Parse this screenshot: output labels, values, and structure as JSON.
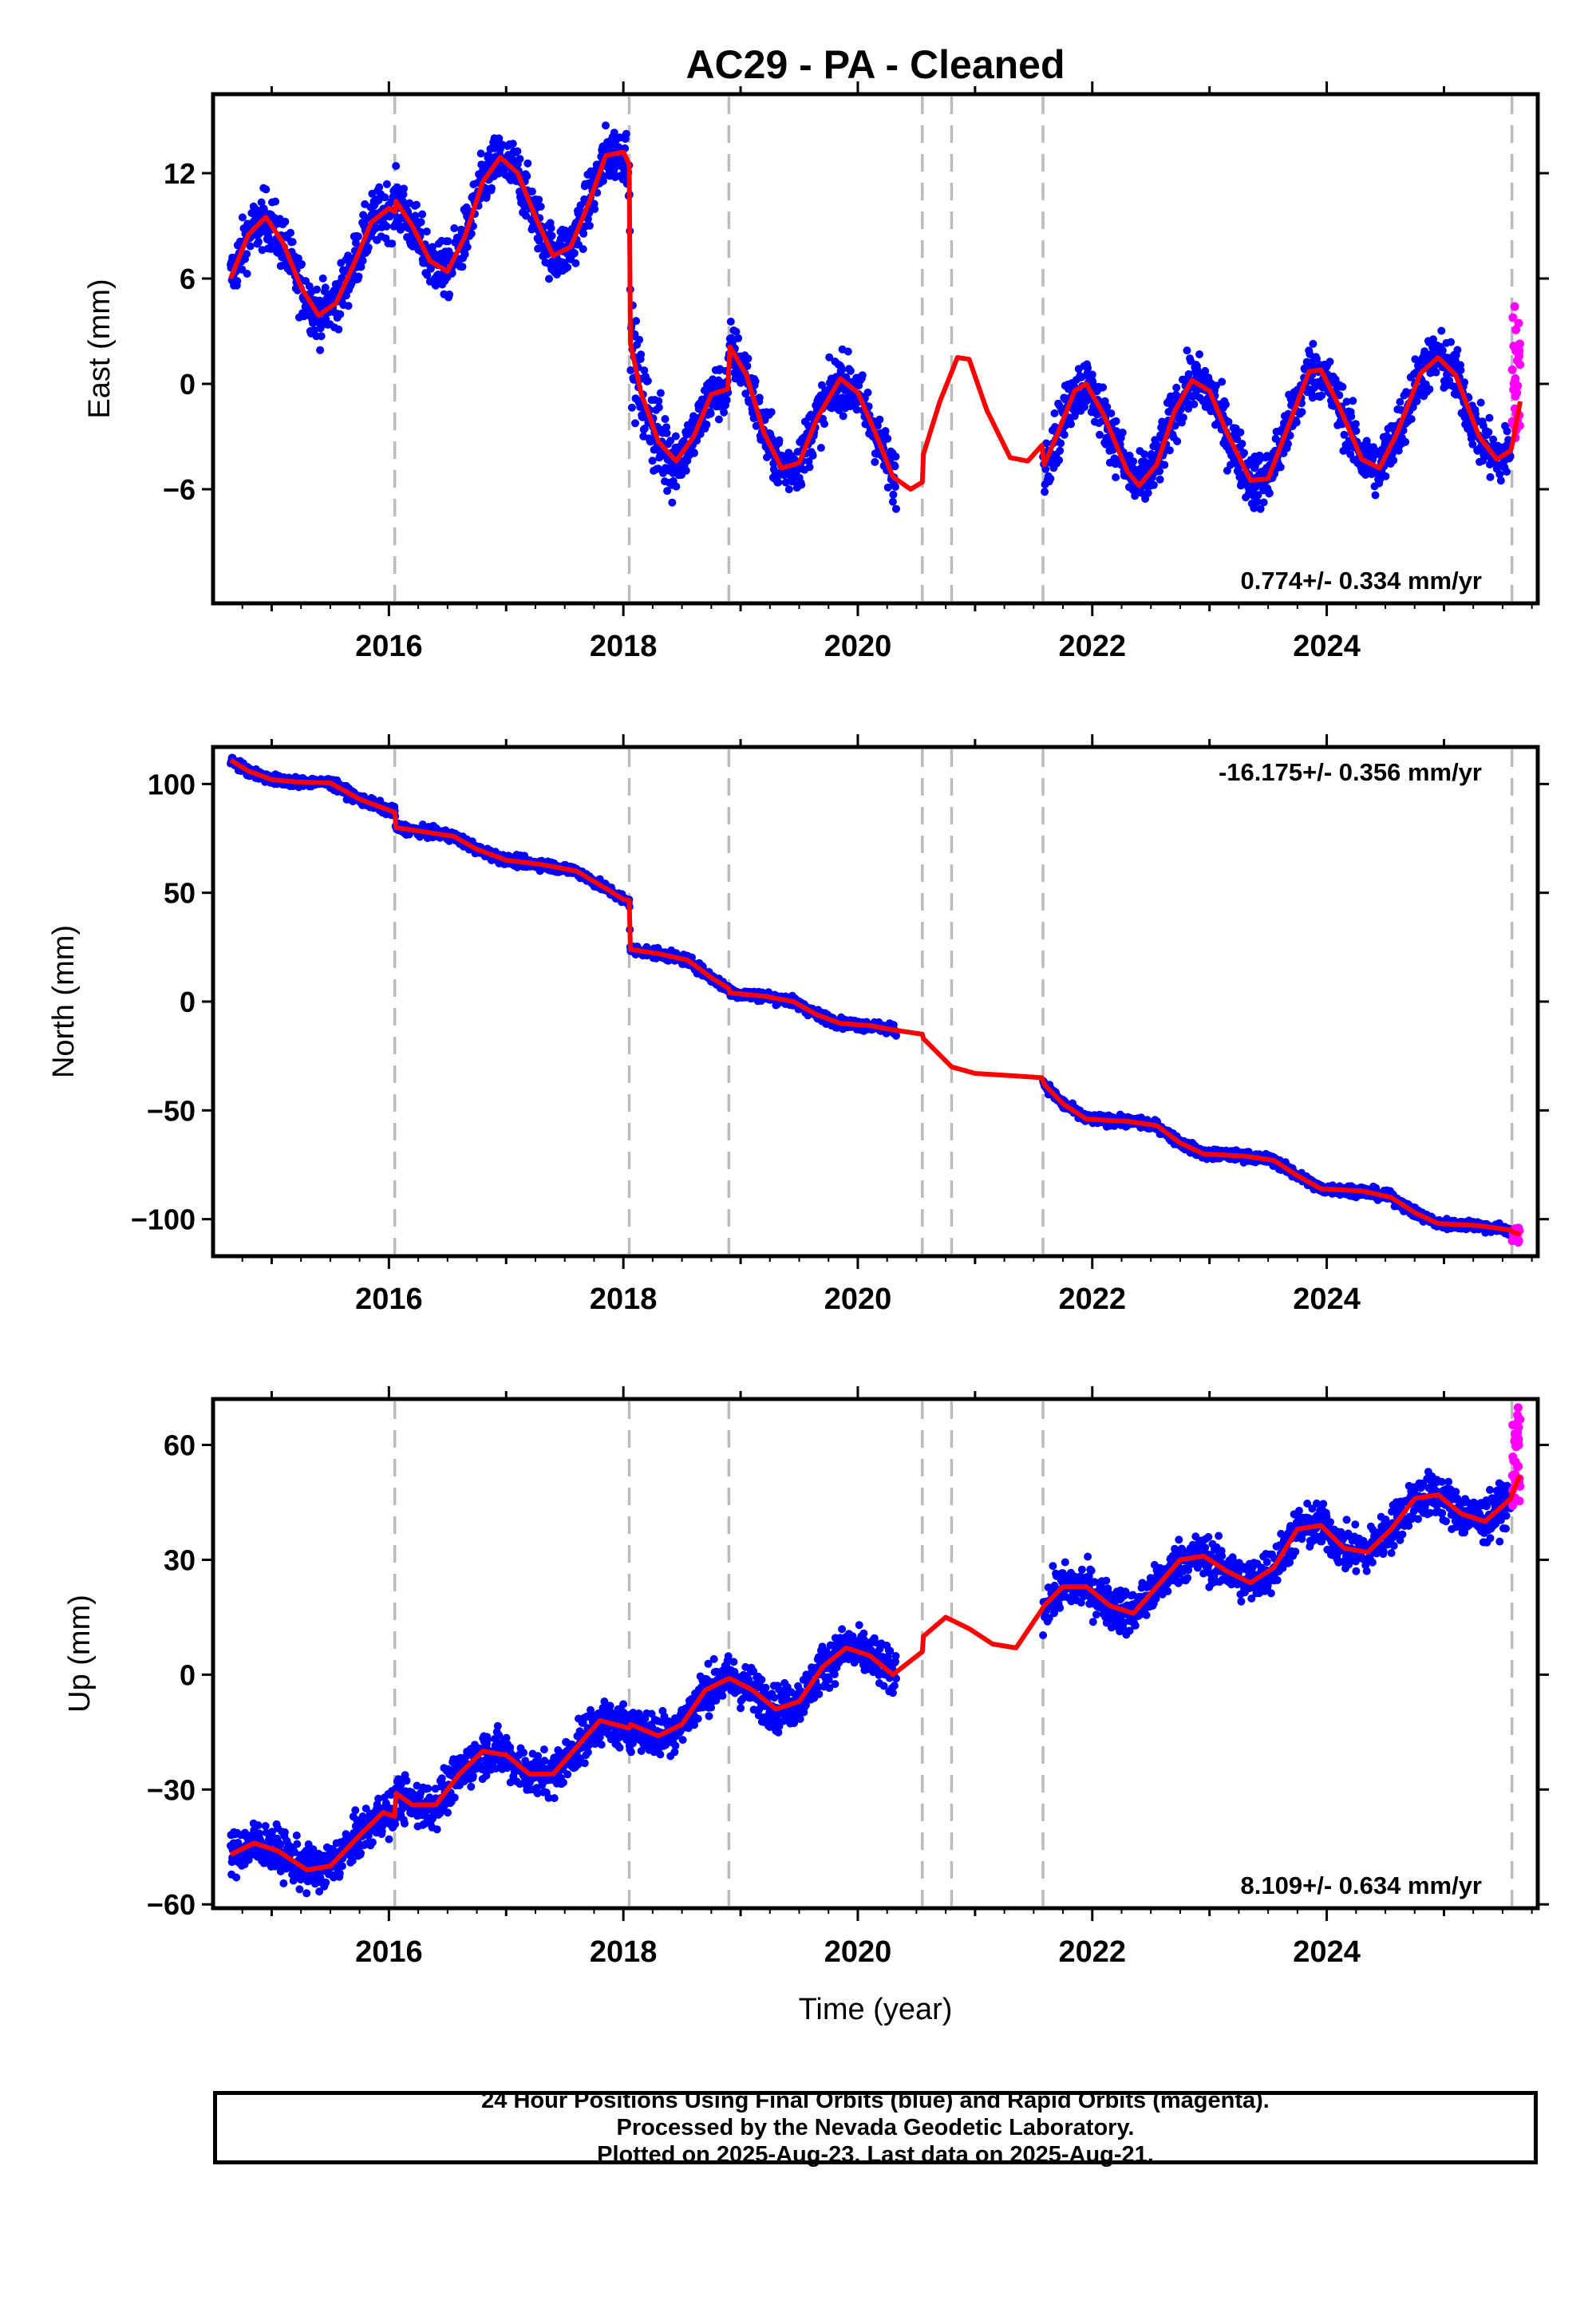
{
  "title": "AC29  - PA - Cleaned",
  "footer": {
    "line1": "24 Hour Positions Using Final Orbits (blue) and Rapid Orbits (magenta).",
    "line2": "Processed by the Nevada Geodetic Laboratory.",
    "line3": "Plotted on 2025-Aug-23. Last data on 2025-Aug-21."
  },
  "colors": {
    "final": "#0000ff",
    "rapid": "#ff00ff",
    "model": "#ff0000",
    "breaks": "#bbbbbb"
  },
  "chart_data": [
    {
      "type": "scatter",
      "name": "east",
      "ylabel": "East (mm)",
      "xlabel": "",
      "xlim": [
        2014.5,
        2025.8
      ],
      "ylim": [
        -12.5,
        16.5
      ],
      "yticks": [
        12,
        6,
        0,
        -6
      ],
      "xticks": [
        2016,
        2018,
        2020,
        2022,
        2024
      ],
      "rate_label": "0.774+/- 0.334 mm/yr",
      "rate_position": "bottom-right",
      "breaks": [
        2016.05,
        2018.05,
        2018.9,
        2020.55,
        2020.8,
        2021.58,
        2025.58
      ],
      "gaps": [
        [
          2020.33,
          2021.58
        ]
      ],
      "model_series": [
        [
          2014.65,
          6.0
        ],
        [
          2014.8,
          8.5
        ],
        [
          2014.95,
          9.5
        ],
        [
          2015.1,
          8.0
        ],
        [
          2015.25,
          5.5
        ],
        [
          2015.4,
          3.9
        ],
        [
          2015.55,
          4.6
        ],
        [
          2015.7,
          6.8
        ],
        [
          2015.85,
          9.2
        ],
        [
          2016.0,
          10.0
        ],
        [
          2016.05,
          9.8
        ],
        [
          2016.06,
          10.4
        ],
        [
          2016.2,
          9.0
        ],
        [
          2016.35,
          7.0
        ],
        [
          2016.5,
          6.4
        ],
        [
          2016.65,
          8.4
        ],
        [
          2016.8,
          11.5
        ],
        [
          2016.95,
          12.9
        ],
        [
          2017.1,
          12.0
        ],
        [
          2017.25,
          9.5
        ],
        [
          2017.4,
          7.3
        ],
        [
          2017.55,
          7.8
        ],
        [
          2017.7,
          10.2
        ],
        [
          2017.85,
          13.0
        ],
        [
          2018.0,
          13.2
        ],
        [
          2018.05,
          12.5
        ],
        [
          2018.06,
          2.3
        ],
        [
          2018.15,
          -0.5
        ],
        [
          2018.3,
          -3.3
        ],
        [
          2018.45,
          -4.4
        ],
        [
          2018.6,
          -3.0
        ],
        [
          2018.75,
          -0.6
        ],
        [
          2018.89,
          -0.3
        ],
        [
          2018.91,
          2.1
        ],
        [
          2019.05,
          0.5
        ],
        [
          2019.2,
          -2.8
        ],
        [
          2019.35,
          -4.8
        ],
        [
          2019.5,
          -4.5
        ],
        [
          2019.65,
          -2.0
        ],
        [
          2019.85,
          0.3
        ],
        [
          2020.0,
          -0.5
        ],
        [
          2020.15,
          -2.8
        ],
        [
          2020.3,
          -5.3
        ],
        [
          2020.45,
          -6.0
        ],
        [
          2020.55,
          -5.6
        ],
        [
          2020.56,
          -4.0
        ],
        [
          2020.7,
          -1.0
        ],
        [
          2020.85,
          1.5
        ],
        [
          2020.95,
          1.4
        ],
        [
          2021.1,
          -1.5
        ],
        [
          2021.3,
          -4.2
        ],
        [
          2021.45,
          -4.4
        ],
        [
          2021.57,
          -3.5
        ],
        [
          2021.59,
          -4.6
        ],
        [
          2021.7,
          -2.9
        ],
        [
          2021.85,
          -0.4
        ],
        [
          2021.95,
          0.0
        ],
        [
          2022.1,
          -1.8
        ],
        [
          2022.3,
          -5.0
        ],
        [
          2022.4,
          -5.8
        ],
        [
          2022.55,
          -4.6
        ],
        [
          2022.7,
          -1.6
        ],
        [
          2022.85,
          0.2
        ],
        [
          2023.0,
          -0.4
        ],
        [
          2023.15,
          -2.8
        ],
        [
          2023.35,
          -5.5
        ],
        [
          2023.5,
          -5.4
        ],
        [
          2023.65,
          -2.8
        ],
        [
          2023.85,
          0.7
        ],
        [
          2023.95,
          0.8
        ],
        [
          2024.1,
          -1.2
        ],
        [
          2024.3,
          -4.3
        ],
        [
          2024.45,
          -4.8
        ],
        [
          2024.6,
          -2.8
        ],
        [
          2024.8,
          0.6
        ],
        [
          2024.95,
          1.5
        ],
        [
          2025.1,
          0.5
        ],
        [
          2025.3,
          -3.0
        ],
        [
          2025.45,
          -4.3
        ],
        [
          2025.57,
          -3.8
        ],
        [
          2025.59,
          -3.2
        ],
        [
          2025.65,
          -1.0
        ]
      ],
      "final_series": {
        "intervals": [
          [
            2014.65,
            2020.33
          ],
          [
            2021.58,
            2025.57
          ]
        ],
        "spread": 1.5,
        "spread_extra": [
          [
            2018.05,
            2018.45,
            1.0
          ]
        ]
      },
      "rapid_series": {
        "interval": [
          2025.58,
          2025.65
        ],
        "min": -3.5,
        "max": 4.5
      }
    },
    {
      "type": "scatter",
      "name": "north",
      "ylabel": "North (mm)",
      "xlabel": "",
      "xlim": [
        2014.5,
        2025.8
      ],
      "ylim": [
        -117,
        117
      ],
      "yticks": [
        100,
        50,
        0,
        -50,
        -100
      ],
      "xticks": [
        2016,
        2018,
        2020,
        2022,
        2024
      ],
      "rate_label": "-16.175+/- 0.356 mm/yr",
      "rate_position": "top-right",
      "breaks": [
        2016.05,
        2018.05,
        2018.9,
        2020.55,
        2020.8,
        2021.58,
        2025.58
      ],
      "gaps": [
        [
          2020.33,
          2021.58
        ]
      ],
      "model_series": [
        [
          2014.65,
          111
        ],
        [
          2014.8,
          106
        ],
        [
          2015.0,
          102
        ],
        [
          2015.2,
          101
        ],
        [
          2015.5,
          100.5
        ],
        [
          2015.75,
          93
        ],
        [
          2016.0,
          88
        ],
        [
          2016.05,
          87
        ],
        [
          2016.06,
          80
        ],
        [
          2016.3,
          78
        ],
        [
          2016.55,
          76
        ],
        [
          2016.75,
          70
        ],
        [
          2017.0,
          65
        ],
        [
          2017.3,
          63
        ],
        [
          2017.6,
          60
        ],
        [
          2017.85,
          52
        ],
        [
          2018.0,
          47
        ],
        [
          2018.05,
          46.5
        ],
        [
          2018.06,
          24
        ],
        [
          2018.3,
          22
        ],
        [
          2018.55,
          19
        ],
        [
          2018.75,
          11
        ],
        [
          2018.9,
          6
        ],
        [
          2018.91,
          4
        ],
        [
          2019.2,
          2.5
        ],
        [
          2019.45,
          0
        ],
        [
          2019.65,
          -6
        ],
        [
          2019.85,
          -10
        ],
        [
          2020.1,
          -11
        ],
        [
          2020.3,
          -13
        ],
        [
          2020.55,
          -15
        ],
        [
          2020.56,
          -17
        ],
        [
          2020.8,
          -30
        ],
        [
          2021.0,
          -33
        ],
        [
          2021.3,
          -34
        ],
        [
          2021.57,
          -35
        ],
        [
          2021.59,
          -38
        ],
        [
          2021.75,
          -47
        ],
        [
          2021.95,
          -54
        ],
        [
          2022.3,
          -55
        ],
        [
          2022.55,
          -57
        ],
        [
          2022.75,
          -65
        ],
        [
          2022.95,
          -70
        ],
        [
          2023.3,
          -71
        ],
        [
          2023.55,
          -73
        ],
        [
          2023.75,
          -80
        ],
        [
          2023.95,
          -86
        ],
        [
          2024.3,
          -87
        ],
        [
          2024.55,
          -90
        ],
        [
          2024.75,
          -97
        ],
        [
          2024.95,
          -102
        ],
        [
          2025.3,
          -103
        ],
        [
          2025.57,
          -105
        ],
        [
          2025.59,
          -106
        ],
        [
          2025.65,
          -107
        ]
      ],
      "final_series": {
        "intervals": [
          [
            2014.65,
            2020.33
          ],
          [
            2021.58,
            2025.57
          ]
        ],
        "spread": 2.2,
        "spread_extra": []
      },
      "rapid_series": {
        "interval": [
          2025.58,
          2025.65
        ],
        "min": -111,
        "max": -104
      }
    },
    {
      "type": "scatter",
      "name": "up",
      "ylabel": "Up (mm)",
      "xlabel": "Time (year)",
      "xlim": [
        2014.5,
        2025.8
      ],
      "ylim": [
        -61,
        72
      ],
      "yticks": [
        60,
        30,
        0,
        -30,
        -60
      ],
      "xticks": [
        2016,
        2018,
        2020,
        2022,
        2024
      ],
      "rate_label": "8.109+/- 0.634 mm/yr",
      "rate_position": "bottom-right",
      "breaks": [
        2016.05,
        2018.05,
        2018.9,
        2020.55,
        2020.8,
        2021.58,
        2025.58
      ],
      "gaps": [
        [
          2020.33,
          2021.58
        ]
      ],
      "model_series": [
        [
          2014.65,
          -47
        ],
        [
          2014.85,
          -44
        ],
        [
          2015.05,
          -46
        ],
        [
          2015.3,
          -51
        ],
        [
          2015.5,
          -50
        ],
        [
          2015.75,
          -42
        ],
        [
          2015.95,
          -36
        ],
        [
          2016.05,
          -37
        ],
        [
          2016.06,
          -31
        ],
        [
          2016.2,
          -34
        ],
        [
          2016.4,
          -34
        ],
        [
          2016.6,
          -26
        ],
        [
          2016.8,
          -20
        ],
        [
          2017.0,
          -21
        ],
        [
          2017.2,
          -26
        ],
        [
          2017.4,
          -26
        ],
        [
          2017.6,
          -19
        ],
        [
          2017.8,
          -12
        ],
        [
          2018.05,
          -14
        ],
        [
          2018.06,
          -13
        ],
        [
          2018.3,
          -16
        ],
        [
          2018.5,
          -13
        ],
        [
          2018.7,
          -4
        ],
        [
          2018.9,
          -1
        ],
        [
          2018.91,
          -1
        ],
        [
          2019.1,
          -4
        ],
        [
          2019.3,
          -9
        ],
        [
          2019.5,
          -7
        ],
        [
          2019.7,
          2
        ],
        [
          2019.9,
          7
        ],
        [
          2020.1,
          5
        ],
        [
          2020.3,
          0
        ],
        [
          2020.55,
          6
        ],
        [
          2020.56,
          10
        ],
        [
          2020.75,
          15
        ],
        [
          2020.95,
          12
        ],
        [
          2021.15,
          8
        ],
        [
          2021.35,
          7
        ],
        [
          2021.57,
          17
        ],
        [
          2021.59,
          18
        ],
        [
          2021.75,
          23
        ],
        [
          2021.95,
          23
        ],
        [
          2022.15,
          18
        ],
        [
          2022.35,
          16
        ],
        [
          2022.55,
          23
        ],
        [
          2022.75,
          30
        ],
        [
          2022.95,
          31
        ],
        [
          2023.15,
          27
        ],
        [
          2023.35,
          24
        ],
        [
          2023.55,
          28
        ],
        [
          2023.75,
          38
        ],
        [
          2023.95,
          39
        ],
        [
          2024.15,
          33
        ],
        [
          2024.35,
          32
        ],
        [
          2024.55,
          38
        ],
        [
          2024.75,
          46
        ],
        [
          2024.95,
          47
        ],
        [
          2025.15,
          42
        ],
        [
          2025.35,
          40
        ],
        [
          2025.57,
          46
        ],
        [
          2025.59,
          48
        ],
        [
          2025.65,
          52
        ]
      ],
      "final_series": {
        "intervals": [
          [
            2014.65,
            2020.33
          ],
          [
            2021.58,
            2025.57
          ]
        ],
        "spread": 5.5,
        "spread_extra": []
      },
      "rapid_series": {
        "interval": [
          2025.58,
          2025.65
        ],
        "min": 44,
        "max": 70
      }
    }
  ]
}
